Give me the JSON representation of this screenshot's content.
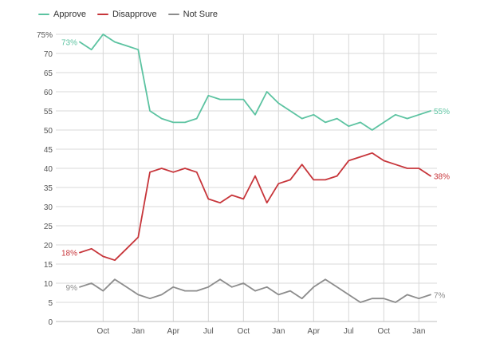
{
  "chart_data": {
    "type": "line",
    "y_unit_suffix": "%",
    "ylim": [
      0,
      75
    ],
    "y_ticks": [
      0,
      5,
      10,
      15,
      20,
      25,
      30,
      35,
      40,
      45,
      50,
      55,
      60,
      65,
      70,
      75
    ],
    "x_ticks": [
      "Oct",
      "Jan",
      "Apr",
      "Jul",
      "Oct",
      "Jan",
      "Apr",
      "Jul",
      "Oct",
      "Jan"
    ],
    "grid": true,
    "legend_position": "top-left",
    "series": [
      {
        "name": "Approve",
        "color": "#5cc3a1",
        "values": [
          73,
          71,
          75,
          73,
          72,
          71,
          55,
          53,
          52,
          52,
          53,
          59,
          58,
          58,
          58,
          54,
          60,
          57,
          55,
          53,
          54,
          52,
          53,
          51,
          52,
          50,
          52,
          54,
          53,
          54,
          55
        ],
        "start_label": "73%",
        "end_label": "55%"
      },
      {
        "name": "Disapprove",
        "color": "#c7353a",
        "values": [
          18,
          19,
          17,
          16,
          19,
          22,
          39,
          40,
          39,
          40,
          39,
          32,
          31,
          33,
          32,
          38,
          31,
          36,
          37,
          41,
          37,
          37,
          38,
          42,
          43,
          44,
          42,
          41,
          40,
          40,
          38
        ],
        "start_label": "18%",
        "end_label": "38%"
      },
      {
        "name": "Not Sure",
        "color": "#8c8c8c",
        "values": [
          9,
          10,
          8,
          11,
          9,
          7,
          6,
          7,
          9,
          8,
          8,
          9,
          11,
          9,
          10,
          8,
          9,
          7,
          8,
          6,
          9,
          11,
          9,
          7,
          5,
          6,
          6,
          5,
          7,
          6,
          7
        ],
        "start_label": "9%",
        "end_label": "7%"
      }
    ]
  }
}
